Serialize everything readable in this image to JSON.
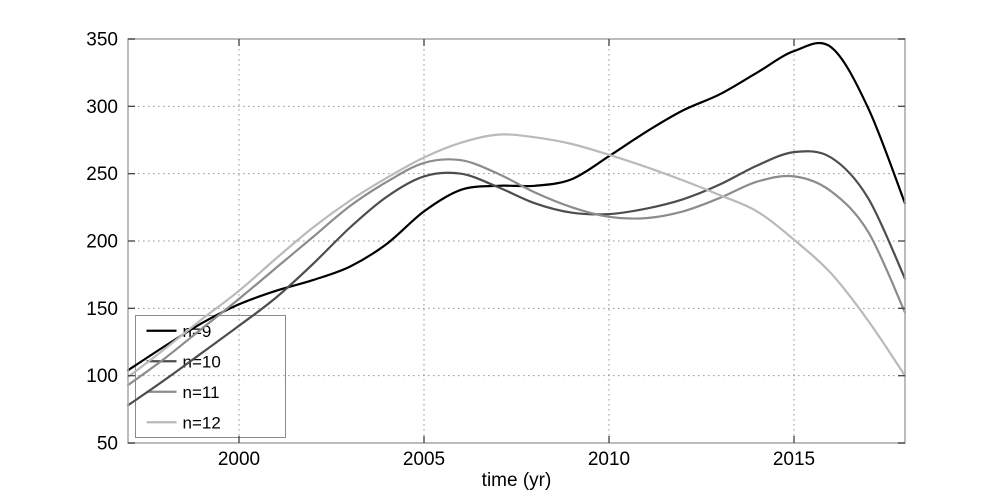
{
  "figure": {
    "background": "#ffffff",
    "plot_background": "#ffffff",
    "axis_box_color": "#ababab",
    "tick_color": "#4d4d4d",
    "grid_color": "#999999",
    "text_color": "#000000",
    "legend_border_color": "#8a8a8a"
  },
  "chart_data": {
    "type": "line",
    "title": "",
    "xlabel": "time (yr)",
    "ylabel": "",
    "xlim": [
      1997,
      2018
    ],
    "ylim": [
      50,
      350
    ],
    "x_ticks": [
      2000,
      2005,
      2010,
      2015
    ],
    "y_ticks": [
      50,
      100,
      150,
      200,
      250,
      300,
      350
    ],
    "grid": "dotted",
    "legend_position": "inside-bottom-left",
    "x": [
      1997,
      1998,
      1999,
      2000,
      2001,
      2002,
      2003,
      2004,
      2005,
      2006,
      2007,
      2008,
      2009,
      2010,
      2011,
      2012,
      2013,
      2014,
      2015,
      2016,
      2017,
      2018
    ],
    "series": [
      {
        "name": "n=9",
        "color": "#000000",
        "values": [
          104,
          122,
          139,
          153,
          163,
          171,
          181,
          198,
          222,
          238,
          241,
          241,
          246,
          263,
          281,
          297,
          309,
          325,
          341,
          344,
          299,
          228
        ]
      },
      {
        "name": "n=10",
        "color": "#4d4d4d",
        "values": [
          78,
          97,
          117,
          137,
          158,
          183,
          210,
          233,
          248,
          250,
          240,
          228,
          221,
          220,
          224,
          231,
          242,
          256,
          266,
          262,
          232,
          172
        ]
      },
      {
        "name": "n=11",
        "color": "#8c8c8c",
        "values": [
          93,
          113,
          135,
          157,
          180,
          203,
          226,
          244,
          258,
          260,
          250,
          236,
          225,
          218,
          217,
          222,
          232,
          244,
          248,
          237,
          207,
          147
        ]
      },
      {
        "name": "n=12",
        "color": "#bababa",
        "values": [
          99,
          120,
          142,
          163,
          187,
          210,
          230,
          247,
          262,
          273,
          279,
          277,
          272,
          264,
          255,
          245,
          234,
          222,
          201,
          176,
          141,
          100
        ]
      }
    ]
  },
  "legend": {
    "items": [
      {
        "label": "n=9",
        "color": "#000000"
      },
      {
        "label": "n=10",
        "color": "#4d4d4d"
      },
      {
        "label": "n=11",
        "color": "#8c8c8c"
      },
      {
        "label": "n=12",
        "color": "#bababa"
      }
    ]
  }
}
